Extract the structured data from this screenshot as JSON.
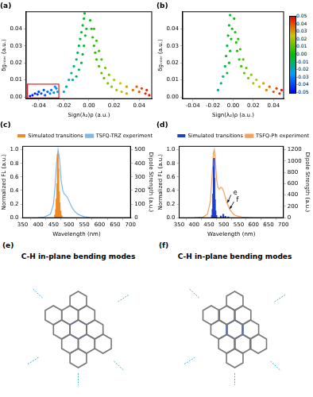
{
  "chart_data": [
    {
      "type": "scatter",
      "title": "(a)",
      "x_label": "Sign(λ₂)ρ (a.u.)",
      "y_label": "δgᵢₙₜₑᵣ (a.u.)",
      "xlim": [
        -0.05,
        0.05
      ],
      "xticks": [
        -0.04,
        -0.02,
        {
          "value": 0,
          "label": "0.00"
        },
        0.02,
        0.04
      ],
      "ylim": [
        -0.001,
        0.05
      ],
      "yticks": [
        {
          "value": 0,
          "label": "0.00"
        },
        0.01,
        0.02,
        0.03,
        0.04
      ],
      "grid": false,
      "series": [
        {
          "x": [
            -0.047,
            -0.045,
            -0.043,
            -0.041,
            -0.04,
            -0.038,
            -0.036,
            -0.035,
            -0.033,
            -0.031,
            -0.03,
            -0.028,
            -0.027,
            -0.026,
            -0.025,
            -0.02,
            -0.018,
            -0.016,
            -0.014,
            -0.013,
            -0.012,
            -0.01,
            -0.01,
            -0.009,
            -0.008,
            -0.008,
            -0.007,
            -0.006,
            -0.006,
            -0.005,
            -0.005,
            -0.004,
            -0.004,
            -0.0035,
            -0.003,
            -0.002,
            0.001,
            0.002,
            0.003,
            0.004,
            0.004,
            0.005,
            0.006,
            0.006,
            0.008,
            0.008,
            0.01,
            0.01,
            0.012,
            0.013,
            0.015,
            0.016,
            0.018,
            0.02,
            0.022,
            0.025,
            0.026,
            0.03,
            0.03,
            0.035,
            0.038,
            0.04,
            0.042,
            0.045,
            0.046,
            0.048
          ],
          "values": [
            0.0005,
            0.001,
            0.002,
            0.0015,
            0.003,
            0.002,
            0.004,
            0.001,
            0.003,
            0.002,
            0.004,
            0.0025,
            0.006,
            0.005,
            0.003,
            0.003,
            0.006,
            0.01,
            0.014,
            0.01,
            0.018,
            0.022,
            0.012,
            0.026,
            0.03,
            0.016,
            0.034,
            0.038,
            0.02,
            0.042,
            0.025,
            0.046,
            0.03,
            0.049,
            0.036,
            0.04,
            0.045,
            0.04,
            0.035,
            0.03,
            0.04,
            0.026,
            0.022,
            0.033,
            0.018,
            0.027,
            0.014,
            0.022,
            0.011,
            0.017,
            0.008,
            0.013,
            0.006,
            0.01,
            0.004,
            0.008,
            0.003,
            0.002,
            0.006,
            0.004,
            0.006,
            0.003,
            0.005,
            0.002,
            0.004,
            0.001
          ]
        }
      ],
      "highlight": {
        "x": [
          -0.049,
          -0.024
        ],
        "y": [
          -0.0006,
          0.0075
        ],
        "color": "#e02020"
      }
    },
    {
      "type": "scatter",
      "title": "(b)",
      "x_label": "Sign(λ₂)ρ (a.u.)",
      "y_label": "δgᵢₙₜₑᵣ (a.u.)",
      "xlim": [
        -0.05,
        0.05
      ],
      "xticks": [
        -0.04,
        -0.02,
        {
          "value": 0,
          "label": "0.00"
        },
        0.02,
        0.04
      ],
      "ylim": [
        -0.001,
        0.05
      ],
      "yticks": [
        {
          "value": 0,
          "label": "0.00"
        },
        0.01,
        0.02,
        0.03,
        0.04
      ],
      "grid": false,
      "series": [
        {
          "x": [
            -0.015,
            -0.012,
            -0.01,
            -0.008,
            -0.007,
            -0.006,
            -0.005,
            -0.004,
            -0.003,
            -0.006,
            -0.004,
            -0.003,
            -0.002,
            -0.001,
            0.001,
            0.002,
            0.003,
            0.004,
            0.005,
            0.006,
            0.007,
            0.008,
            0.01,
            0.011,
            0.013,
            0.015,
            0.018,
            0.02,
            0.023,
            0.026,
            0.03,
            0.033,
            0.036,
            0.04,
            0.043,
            0.046,
            0.048
          ],
          "values": [
            0.004,
            0.008,
            0.012,
            0.018,
            0.024,
            0.03,
            0.036,
            0.042,
            0.048,
            0.014,
            0.02,
            0.027,
            0.034,
            0.04,
            0.046,
            0.038,
            0.032,
            0.027,
            0.034,
            0.022,
            0.028,
            0.018,
            0.022,
            0.014,
            0.017,
            0.011,
            0.013,
            0.008,
            0.01,
            0.006,
            0.008,
            0.004,
            0.006,
            0.003,
            0.005,
            0.002,
            0.004
          ]
        }
      ],
      "colorbar": {
        "range": [
          -0.05,
          0.05
        ],
        "ticks": [
          0.05,
          0.04,
          0.03,
          0.02,
          0.01,
          {
            "value": 0,
            "label": "0.00"
          },
          -0.01,
          -0.02,
          -0.03,
          -0.04,
          -0.05
        ],
        "colors": [
          "#0000ff",
          "#00a0ff",
          "#00c000",
          "#c8c800",
          "#ff0000"
        ]
      }
    },
    {
      "type": "line",
      "title": "(c)",
      "x_label": "Wavelength (nm)",
      "y_label": "Normalized FL (a.u.)",
      "y2_label": "Dipole Strength (a.u.)",
      "xlim": [
        350,
        700
      ],
      "xticks": [
        350,
        400,
        450,
        500,
        550,
        600,
        650,
        700
      ],
      "ylim": [
        0,
        1.05
      ],
      "yticks": [
        {
          "value": 0,
          "label": "0.0"
        },
        0.2,
        0.4,
        0.6,
        0.8,
        {
          "value": 1,
          "label": "1.0"
        }
      ],
      "y2lim": [
        0,
        525
      ],
      "y2ticks": [
        0,
        100,
        200,
        300,
        400,
        500
      ],
      "grid": false,
      "legend": "upper right",
      "series": [
        {
          "name": "TSFQ-TRZ experiment",
          "type": "line",
          "color": "#7db9e8",
          "x": [
            400,
            420,
            440,
            450,
            455,
            460,
            465,
            470,
            475,
            480,
            485,
            490,
            495,
            500,
            510,
            520,
            530,
            540,
            550,
            570,
            600,
            650,
            700
          ],
          "values": [
            0,
            0.01,
            0.05,
            0.2,
            0.45,
            0.8,
            1.0,
            0.85,
            0.55,
            0.4,
            0.35,
            0.33,
            0.3,
            0.25,
            0.15,
            0.09,
            0.05,
            0.03,
            0.015,
            0.005,
            0,
            0,
            0
          ]
        },
        {
          "name": "Simulated transitions",
          "type": "bar",
          "color": "#f08a24",
          "axis": "y2",
          "x": [
            455,
            458,
            460,
            462,
            464,
            466,
            468,
            470,
            473,
            476
          ],
          "values": [
            20,
            60,
            140,
            250,
            470,
            360,
            190,
            110,
            50,
            15
          ]
        }
      ]
    },
    {
      "type": "line",
      "title": "(d)",
      "x_label": "Wavelength (nm)",
      "y_label": "Normalized FL (a.u.)",
      "y2_label": "Dipole Strength (a.u.)",
      "xlim": [
        350,
        700
      ],
      "xticks": [
        350,
        400,
        450,
        500,
        550,
        600,
        650,
        700
      ],
      "ylim": [
        0,
        1.05
      ],
      "yticks": [
        {
          "value": 0,
          "label": "0.0"
        },
        0.2,
        0.4,
        0.6,
        0.8,
        {
          "value": 1,
          "label": "1.0"
        }
      ],
      "y2lim": [
        0,
        1260
      ],
      "y2ticks": [
        0,
        200,
        400,
        600,
        800,
        1000,
        1200
      ],
      "grid": false,
      "legend": "upper right",
      "series": [
        {
          "name": "TSFQ-Ph experiment",
          "type": "line",
          "color": "#f5a05a",
          "x": [
            400,
            430,
            445,
            455,
            460,
            465,
            468,
            472,
            476,
            480,
            485,
            490,
            495,
            500,
            505,
            510,
            520,
            530,
            540,
            560,
            600,
            700
          ],
          "values": [
            0,
            0.01,
            0.05,
            0.25,
            0.6,
            0.95,
            1.0,
            0.8,
            0.55,
            0.45,
            0.42,
            0.45,
            0.43,
            0.38,
            0.3,
            0.22,
            0.12,
            0.06,
            0.03,
            0.01,
            0,
            0
          ]
        },
        {
          "name": "Simulated transitions",
          "type": "bar",
          "color": "#1f3fd0",
          "axis": "y2",
          "x": [
            460,
            462,
            464,
            466,
            467,
            468,
            470,
            472,
            475,
            490,
            498,
            505,
            515
          ],
          "values": [
            40,
            150,
            420,
            900,
            1050,
            700,
            320,
            120,
            40,
            30,
            60,
            25,
            15
          ]
        }
      ],
      "annotations": [
        {
          "text": "e",
          "x": 532,
          "y": 0.36,
          "arrow_to": [
            512,
            0.22
          ]
        },
        {
          "text": "f",
          "x": 542,
          "y": 0.26,
          "arrow_to": [
            520,
            0.13
          ]
        }
      ]
    }
  ],
  "diagrams": [
    {
      "label": "(e)",
      "title": "C-H in-plane bending modes"
    },
    {
      "label": "(f)",
      "title": "C-H in-plane bending modes"
    }
  ]
}
